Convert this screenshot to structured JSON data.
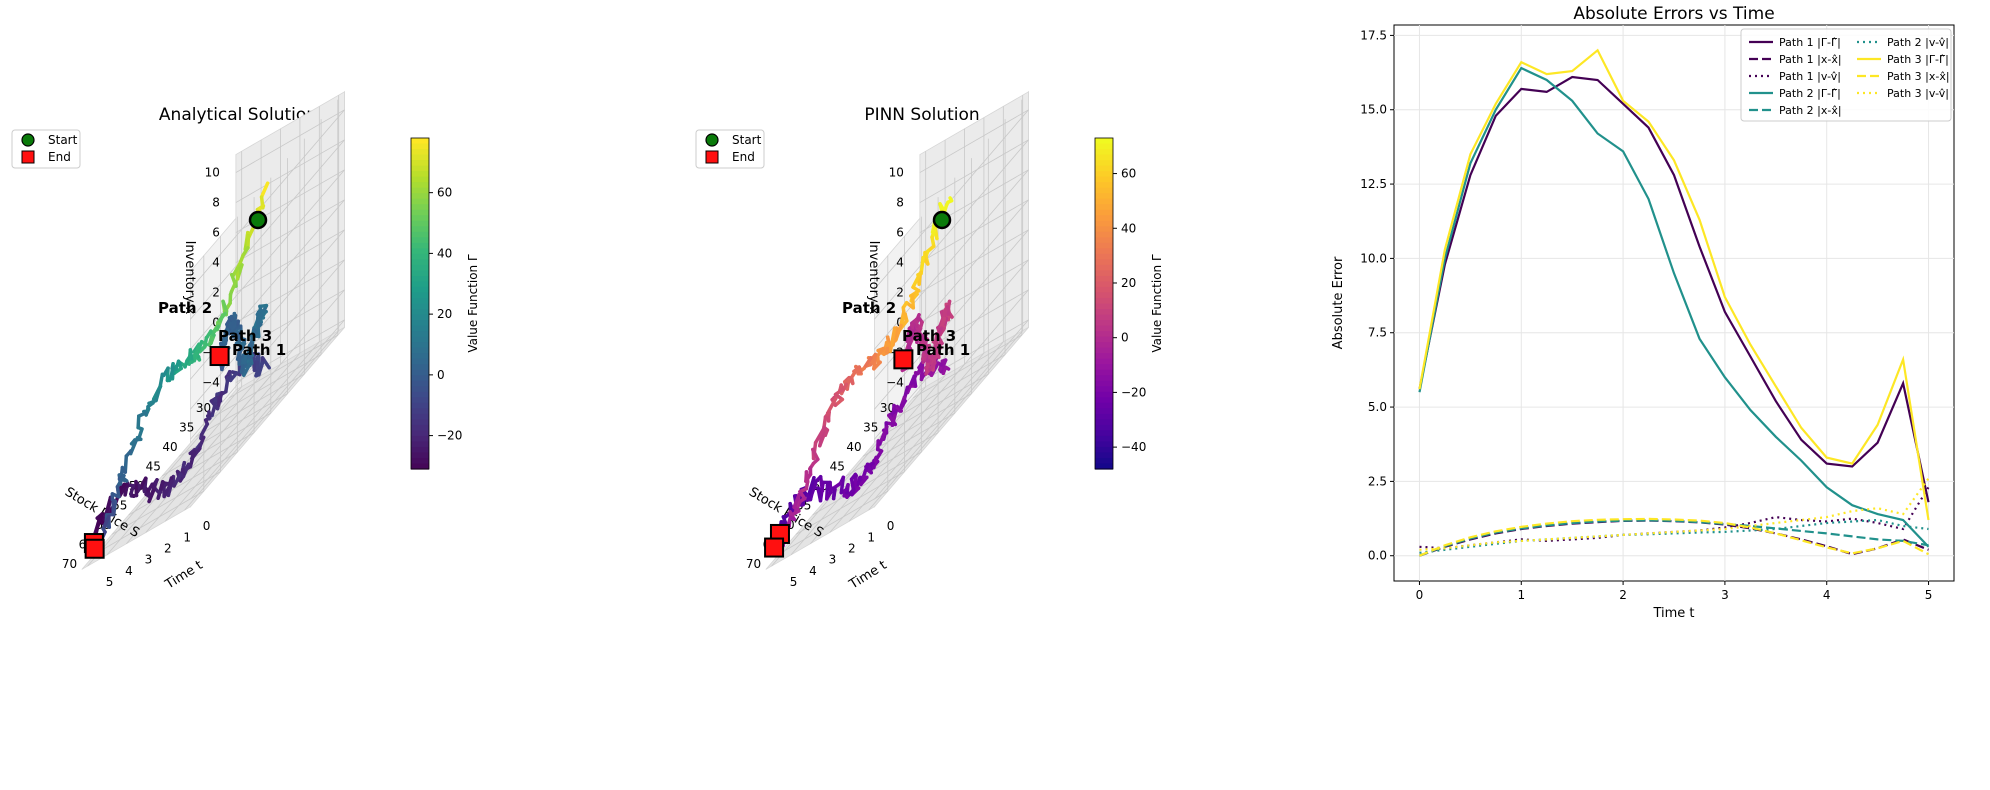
{
  "panels": [
    {
      "title": "Analytical Solution",
      "legend": {
        "start_label": "Start",
        "end_label": "End"
      },
      "axes": {
        "x_label": "Time t",
        "y_label": "Stock Price S",
        "z_label": "Inventory x",
        "x_ticks": [
          0,
          1,
          2,
          3,
          4,
          5
        ],
        "y_ticks": [
          30,
          35,
          40,
          45,
          50,
          55,
          60,
          65,
          70
        ],
        "z_ticks": [
          -4,
          -2,
          0,
          2,
          4,
          6,
          8,
          10
        ]
      },
      "path_labels": [
        "Path 1",
        "Path 2",
        "Path 3"
      ],
      "colorbar": {
        "label": "Value Function Γ",
        "ticks": [
          60,
          40,
          20,
          0,
          -20
        ],
        "colormap": "viridis",
        "range": [
          -31,
          78
        ]
      }
    },
    {
      "title": "PINN Solution",
      "legend": {
        "start_label": "Start",
        "end_label": "End"
      },
      "axes": {
        "x_label": "Time t",
        "y_label": "Stock Price S",
        "z_label": "Inventory x",
        "x_ticks": [
          0,
          1,
          2,
          3,
          4,
          5
        ],
        "y_ticks": [
          30,
          35,
          40,
          45,
          50,
          55,
          60,
          65,
          70
        ],
        "z_ticks": [
          -4,
          -2,
          0,
          2,
          4,
          6,
          8,
          10
        ]
      },
      "path_labels": [
        "Path 1",
        "Path 2",
        "Path 3"
      ],
      "colorbar": {
        "label": "Value Function Γ",
        "ticks": [
          60,
          40,
          20,
          0,
          -20,
          -40
        ],
        "colormap": "plasma",
        "range": [
          -48,
          73
        ]
      }
    }
  ],
  "chart_data": {
    "type": "line",
    "title": "Absolute Errors vs Time",
    "xlabel": "Time t",
    "ylabel": "Absolute Error",
    "xlim": [
      -0.25,
      5.25
    ],
    "ylim": [
      -0.85,
      17.85
    ],
    "x_ticks": [
      0,
      1,
      2,
      3,
      4,
      5
    ],
    "y_ticks": [
      0.0,
      2.5,
      5.0,
      7.5,
      10.0,
      12.5,
      15.0,
      17.5
    ],
    "grid": true,
    "legend_position": "top-right",
    "x": [
      0,
      0.25,
      0.5,
      0.75,
      1.0,
      1.25,
      1.5,
      1.75,
      2.0,
      2.25,
      2.5,
      2.75,
      3.0,
      3.25,
      3.5,
      3.75,
      4.0,
      4.25,
      4.5,
      4.75,
      5.0
    ],
    "series": [
      {
        "name": "Path 1 |Γ-Γ̂|",
        "color": "#440154",
        "style": "solid",
        "values": [
          5.6,
          9.8,
          12.8,
          14.8,
          15.7,
          15.6,
          16.1,
          16.0,
          15.2,
          14.4,
          12.8,
          10.4,
          8.2,
          6.7,
          5.2,
          3.9,
          3.1,
          3.0,
          3.8,
          5.8,
          1.8
        ]
      },
      {
        "name": "Path 1 |x-x̂|",
        "color": "#440154",
        "style": "dashed",
        "values": [
          0.0,
          0.3,
          0.55,
          0.75,
          0.9,
          1.0,
          1.08,
          1.13,
          1.17,
          1.18,
          1.16,
          1.12,
          1.05,
          0.92,
          0.75,
          0.55,
          0.32,
          0.05,
          0.25,
          0.55,
          0.2
        ]
      },
      {
        "name": "Path 1 |v-v̂|",
        "color": "#440154",
        "style": "dotted",
        "values": [
          0.3,
          0.25,
          0.35,
          0.45,
          0.55,
          0.5,
          0.55,
          0.6,
          0.7,
          0.75,
          0.8,
          0.85,
          0.95,
          1.1,
          1.3,
          1.2,
          1.15,
          1.25,
          1.1,
          0.9,
          2.3
        ]
      },
      {
        "name": "Path 2 |Γ-Γ̂|",
        "color": "#21918c",
        "style": "solid",
        "values": [
          5.5,
          10.0,
          13.2,
          15.0,
          16.4,
          16.0,
          15.3,
          14.2,
          13.6,
          12.0,
          9.5,
          7.3,
          6.0,
          4.9,
          4.0,
          3.2,
          2.3,
          1.7,
          1.4,
          1.2,
          0.3
        ]
      },
      {
        "name": "Path 2 |x-x̂|",
        "color": "#21918c",
        "style": "dashed",
        "values": [
          0.0,
          0.32,
          0.58,
          0.78,
          0.92,
          1.02,
          1.1,
          1.15,
          1.18,
          1.19,
          1.17,
          1.13,
          1.07,
          1.0,
          0.92,
          0.83,
          0.75,
          0.65,
          0.55,
          0.5,
          0.35
        ]
      },
      {
        "name": "Path 2 |v-v̂|",
        "color": "#21918c",
        "style": "dotted",
        "values": [
          0.1,
          0.2,
          0.3,
          0.4,
          0.5,
          0.55,
          0.6,
          0.65,
          0.7,
          0.72,
          0.75,
          0.78,
          0.8,
          0.85,
          0.9,
          1.0,
          1.1,
          1.15,
          1.2,
          1.0,
          0.9
        ]
      },
      {
        "name": "Path 3 |Γ-Γ̂|",
        "color": "#fde725",
        "style": "solid",
        "values": [
          5.6,
          10.3,
          13.5,
          15.2,
          16.6,
          16.2,
          16.3,
          17.0,
          15.3,
          14.6,
          13.3,
          11.3,
          8.7,
          7.1,
          5.7,
          4.3,
          3.3,
          3.1,
          4.4,
          6.6,
          1.2
        ]
      },
      {
        "name": "Path 3 |x-x̂|",
        "color": "#fde725",
        "style": "dashed",
        "values": [
          0.0,
          0.35,
          0.62,
          0.82,
          0.97,
          1.08,
          1.16,
          1.21,
          1.23,
          1.24,
          1.22,
          1.18,
          1.1,
          0.95,
          0.75,
          0.52,
          0.28,
          0.08,
          0.25,
          0.5,
          0.05
        ]
      },
      {
        "name": "Path 3 |v-v̂|",
        "color": "#fde725",
        "style": "dotted",
        "values": [
          0.2,
          0.25,
          0.35,
          0.45,
          0.5,
          0.55,
          0.6,
          0.65,
          0.7,
          0.75,
          0.8,
          0.85,
          0.9,
          1.0,
          1.1,
          1.2,
          1.3,
          1.5,
          1.6,
          1.4,
          2.6
        ]
      }
    ]
  }
}
